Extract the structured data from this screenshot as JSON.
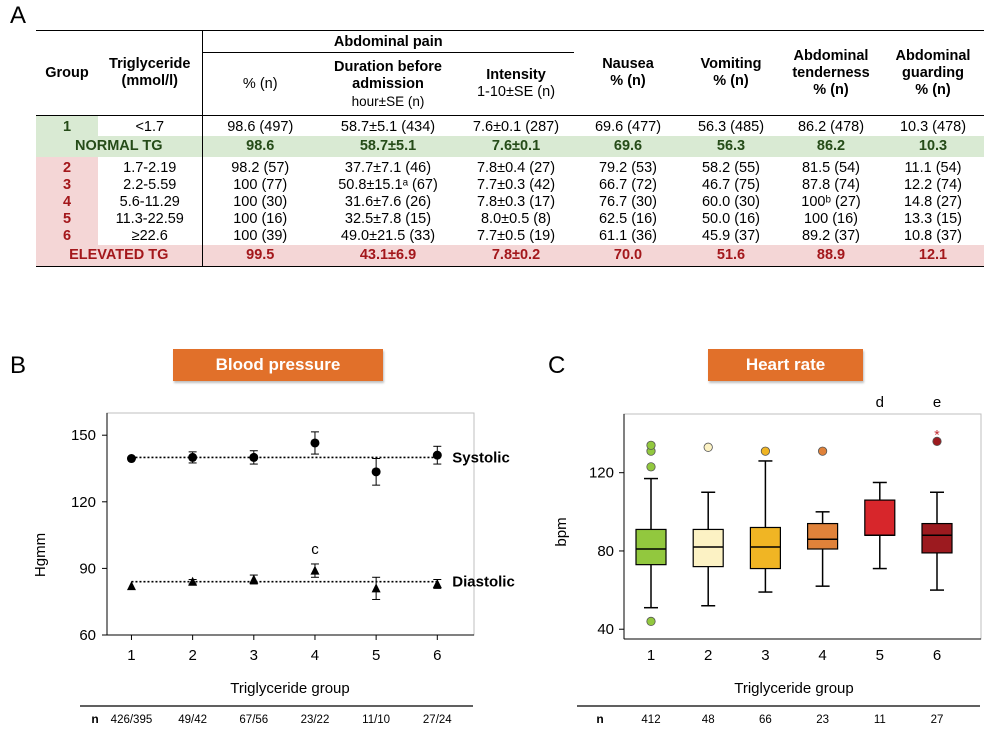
{
  "panels": {
    "a": "A",
    "b": "B",
    "c": "C"
  },
  "table": {
    "headers": {
      "group": "Group",
      "triglyceride": "Triglyceride",
      "triglyceride_unit": "(mmol/l)",
      "abdominal_pain": "Abdominal pain",
      "pct": "% (n)",
      "duration_line1": "Duration before",
      "duration_line2": "admission",
      "duration_unit": "hour±SE (n)",
      "intensity": "Intensity",
      "intensity_unit": "1-10±SE (n)",
      "nausea": "Nausea",
      "nausea_unit": "% (n)",
      "vomiting": "Vomiting",
      "vomiting_unit": "% (n)",
      "tenderness_line1": "Abdominal",
      "tenderness_line2": "tenderness",
      "tenderness_unit": "% (n)",
      "guarding_line1": "Abdominal",
      "guarding_line2": "guarding",
      "guarding_unit": "% (n)"
    },
    "group1": {
      "group": "1",
      "tg": "<1.7",
      "cells": [
        "98.6 (497)",
        "58.7±5.1 (434)",
        "7.6±0.1 (287)",
        "69.6 (477)",
        "56.3 (485)",
        "86.2 (478)",
        "10.3 (478)"
      ]
    },
    "normal": {
      "label": "NORMAL TG",
      "cells": [
        "98.6",
        "58.7±5.1",
        "7.6±0.1",
        "69.6",
        "56.3",
        "86.2",
        "10.3"
      ]
    },
    "groups": [
      {
        "group": "2",
        "tg": "1.7-2.19",
        "cells": [
          "98.2 (57)",
          "37.7±7.1 (46)",
          "7.8±0.4 (27)",
          "79.2 (53)",
          "58.2 (55)",
          "81.5 (54)",
          "11.1 (54)"
        ]
      },
      {
        "group": "3",
        "tg": "2.2-5.59",
        "cells": [
          "100 (77)",
          "50.8±15.1ᵃ (67)",
          "7.7±0.3 (42)",
          "66.7 (72)",
          "46.7 (75)",
          "87.8 (74)",
          "12.2 (74)"
        ]
      },
      {
        "group": "4",
        "tg": "5.6-11.29",
        "cells": [
          "100 (30)",
          "31.6±7.6 (26)",
          "7.8±0.3 (17)",
          "76.7 (30)",
          "60.0 (30)",
          "100ᵇ (27)",
          "14.8 (27)"
        ]
      },
      {
        "group": "5",
        "tg": "11.3-22.59",
        "cells": [
          "100 (16)",
          "32.5±7.8 (15)",
          "8.0±0.5 (8)",
          "62.5 (16)",
          "50.0 (16)",
          "100 (16)",
          "13.3 (15)"
        ]
      },
      {
        "group": "6",
        "tg": "≥22.6",
        "cells": [
          "100 (39)",
          "49.0±21.5 (33)",
          "7.7±0.5 (19)",
          "61.1 (36)",
          "45.9 (37)",
          "89.2 (37)",
          "10.8 (37)"
        ]
      }
    ],
    "elevated": {
      "label": "ELEVATED TG",
      "cells": [
        "99.5",
        "43.1±6.9",
        "7.8±0.2",
        "70.0",
        "51.6",
        "88.9",
        "12.1"
      ]
    }
  },
  "bp": {
    "title": "Blood pressure",
    "n_label": "n",
    "n_values": [
      "426/395",
      "49/42",
      "67/56",
      "23/22",
      "11/10",
      "27/24"
    ]
  },
  "hr": {
    "title": "Heart rate",
    "n_label": "n",
    "n_values": [
      "412",
      "48",
      "66",
      "23",
      "11",
      "27"
    ]
  },
  "chart_data": [
    {
      "type": "scatter",
      "title": "Blood pressure",
      "xlabel": "Triglyceride group",
      "ylabel": "Hgmm",
      "x": [
        1,
        2,
        3,
        4,
        5,
        6
      ],
      "xlim": [
        0.6,
        6.6
      ],
      "ylim": [
        60,
        160
      ],
      "yticks": [
        60,
        90,
        120,
        150
      ],
      "series": [
        {
          "name": "Systolic",
          "marker": "circle",
          "values": [
            139.5,
            140,
            140,
            146.5,
            133.5,
            141
          ],
          "errors": [
            0,
            2.5,
            3,
            5,
            6,
            4
          ],
          "reference": 140
        },
        {
          "name": "Diastolic",
          "marker": "triangle",
          "values": [
            82,
            84,
            85,
            89,
            81,
            83
          ],
          "errors": [
            0,
            1,
            2,
            3,
            5,
            2
          ],
          "reference": 84
        }
      ],
      "annotations": [
        {
          "x": 4,
          "series": "Diastolic",
          "text": "c"
        }
      ]
    },
    {
      "type": "box",
      "title": "Heart rate",
      "xlabel": "Triglyceride group",
      "ylabel": "bpm",
      "categories": [
        "1",
        "2",
        "3",
        "4",
        "5",
        "6"
      ],
      "ylim": [
        35,
        150
      ],
      "yticks": [
        40,
        80,
        120
      ],
      "boxes": [
        {
          "whisker_low": 51,
          "q1": 73,
          "median": 81,
          "q3": 91,
          "whisker_high": 117,
          "outliers": [
            44,
            123,
            131,
            134
          ],
          "color": "#92c83e"
        },
        {
          "whisker_low": 52,
          "q1": 72,
          "median": 82,
          "q3": 91,
          "whisker_high": 110,
          "outliers": [
            133
          ],
          "color": "#fcf2c4"
        },
        {
          "whisker_low": 59,
          "q1": 71,
          "median": 82,
          "q3": 92,
          "whisker_high": 126,
          "outliers": [
            131
          ],
          "color": "#f0b524"
        },
        {
          "whisker_low": 62,
          "q1": 81,
          "median": 86,
          "q3": 94,
          "whisker_high": 100,
          "outliers": [
            131
          ],
          "color": "#e0823a"
        },
        {
          "whisker_low": 71,
          "q1": 88,
          "median": 88,
          "q3": 106,
          "whisker_high": 115,
          "outliers": [],
          "color": "#d7262b"
        },
        {
          "whisker_low": 60,
          "q1": 79,
          "median": 88,
          "q3": 94,
          "whisker_high": 110,
          "outliers": [
            136
          ],
          "extremes": [
            140
          ],
          "color": "#9c1a1f"
        }
      ],
      "annotations": [
        {
          "x": "5",
          "text": "d"
        },
        {
          "x": "6",
          "text": "e"
        }
      ]
    }
  ]
}
